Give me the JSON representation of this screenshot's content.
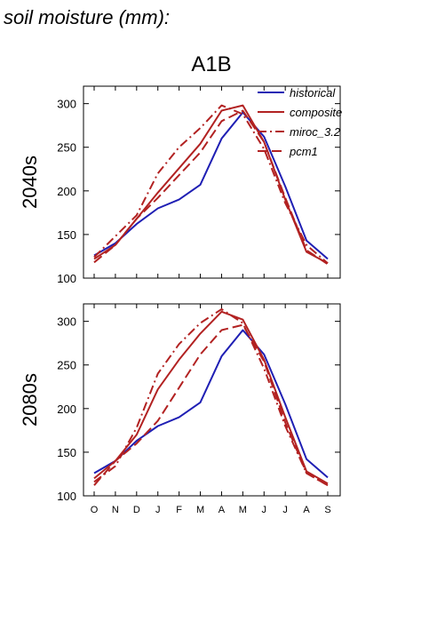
{
  "page_title": "soil moisture (mm):",
  "scenario": "A1B",
  "legend": [
    {
      "name": "historical",
      "color": "#1f1fb4",
      "dash": "solid"
    },
    {
      "name": "composite",
      "color": "#b22222",
      "dash": "solid"
    },
    {
      "name": "miroc_3.2",
      "color": "#b22222",
      "dash": "dashdot"
    },
    {
      "name": "pcm1",
      "color": "#b22222",
      "dash": "dashed"
    }
  ],
  "chart_data": [
    {
      "type": "line",
      "row_label": "2040s",
      "categories": [
        "O",
        "N",
        "D",
        "J",
        "F",
        "M",
        "A",
        "M",
        "J",
        "J",
        "A",
        "S"
      ],
      "ylim": [
        100,
        320
      ],
      "yticks": [
        100,
        150,
        200,
        250,
        300
      ],
      "series": [
        {
          "name": "historical",
          "values": [
            126,
            140,
            162,
            180,
            190,
            207,
            260,
            290,
            262,
            205,
            143,
            122
          ]
        },
        {
          "name": "composite",
          "values": [
            122,
            138,
            168,
            198,
            226,
            254,
            292,
            298,
            256,
            190,
            130,
            117
          ]
        },
        {
          "name": "miroc_3.2",
          "values": [
            124,
            148,
            172,
            220,
            250,
            272,
            298,
            288,
            248,
            186,
            138,
            117
          ]
        },
        {
          "name": "pcm1",
          "values": [
            118,
            138,
            168,
            192,
            218,
            244,
            280,
            292,
            256,
            192,
            132,
            116
          ]
        }
      ]
    },
    {
      "type": "line",
      "row_label": "2080s",
      "categories": [
        "O",
        "N",
        "D",
        "J",
        "F",
        "M",
        "A",
        "M",
        "J",
        "J",
        "A",
        "S"
      ],
      "ylim": [
        100,
        320
      ],
      "yticks": [
        100,
        150,
        200,
        250,
        300
      ],
      "series": [
        {
          "name": "historical",
          "values": [
            126,
            140,
            163,
            180,
            190,
            207,
            260,
            290,
            262,
            205,
            142,
            121
          ]
        },
        {
          "name": "composite",
          "values": [
            120,
            140,
            170,
            222,
            256,
            286,
            311,
            302,
            256,
            190,
            128,
            114
          ]
        },
        {
          "name": "miroc_3.2",
          "values": [
            116,
            134,
            178,
            240,
            274,
            298,
            314,
            298,
            246,
            180,
            126,
            112
          ]
        },
        {
          "name": "pcm1",
          "values": [
            112,
            140,
            160,
            186,
            224,
            262,
            290,
            296,
            254,
            184,
            126,
            112
          ]
        }
      ]
    }
  ]
}
